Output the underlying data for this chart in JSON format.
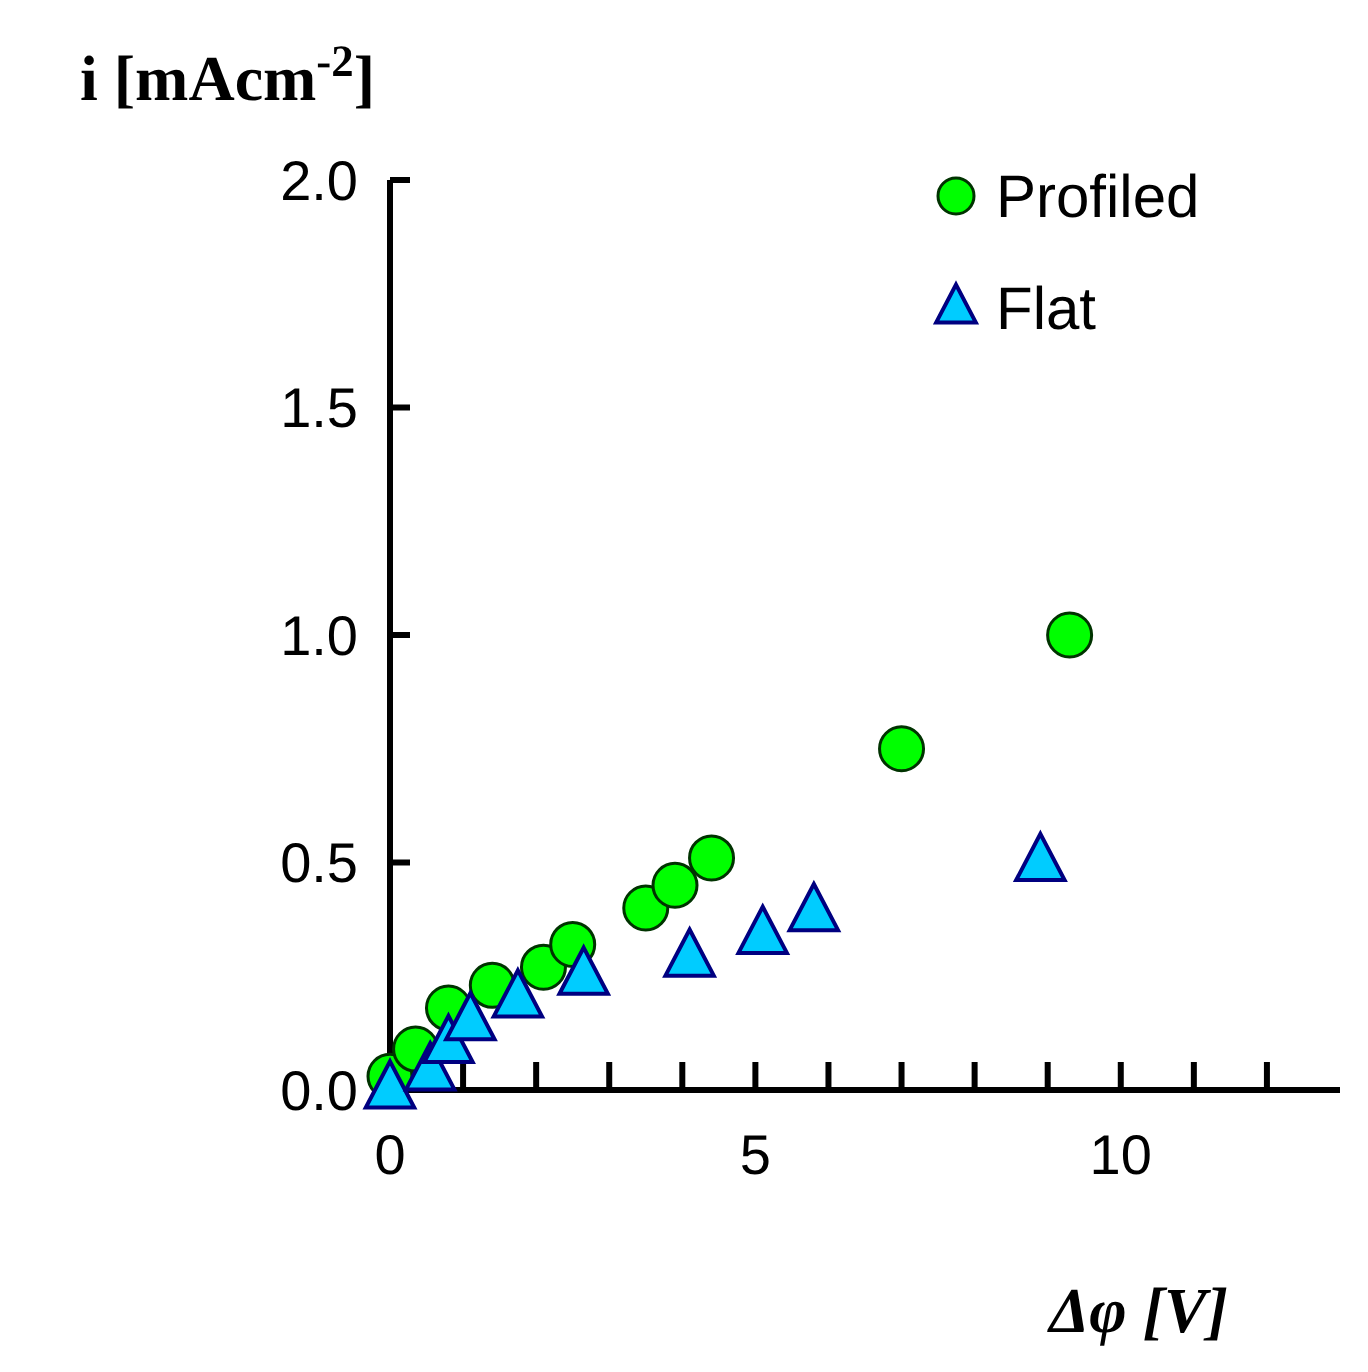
{
  "chart_data": {
    "type": "scatter",
    "xlabel": "Δφ [V]",
    "ylabel": "i [mAcm$^{-2}$]",
    "xlim": [
      0,
      13
    ],
    "ylim": [
      0,
      2
    ],
    "xticks": [
      0,
      {
        "value": 1,
        "label": null
      },
      {
        "value": 2,
        "label": null
      },
      {
        "value": 3,
        "label": null
      },
      {
        "value": 4,
        "label": null
      },
      5,
      {
        "value": 6,
        "label": null
      },
      {
        "value": 7,
        "label": null
      },
      {
        "value": 8,
        "label": null
      },
      {
        "value": 9,
        "label": null
      },
      10,
      {
        "value": 11,
        "label": null
      },
      {
        "value": 12,
        "label": null
      }
    ],
    "yticks": [
      {
        "value": 0,
        "label": "0.0"
      },
      {
        "value": 0.5,
        "label": "0.5"
      },
      {
        "value": 1,
        "label": "1.0"
      },
      {
        "value": 1.5,
        "label": "1.5"
      },
      {
        "value": 2,
        "label": "2.0"
      }
    ],
    "legend": "top right",
    "grid": false,
    "series": [
      {
        "name": "Profiled",
        "color": "#00ff00",
        "marker": "circle",
        "x": [
          0,
          0.35,
          0.8,
          1.4,
          2.1,
          2.5,
          3.5,
          3.9,
          4.4,
          7.0,
          9.3
        ],
        "values": [
          0.03,
          0.09,
          0.18,
          0.23,
          0.27,
          0.32,
          0.4,
          0.45,
          0.51,
          0.75,
          1.0
        ]
      },
      {
        "name": "Flat",
        "color": "#00ccff",
        "marker": "triangle",
        "x": [
          0,
          0.55,
          0.8,
          1.1,
          1.75,
          2.65,
          4.1,
          5.1,
          5.8,
          8.9
        ],
        "values": [
          0,
          0.04,
          0.1,
          0.15,
          0.2,
          0.25,
          0.29,
          0.34,
          0.39,
          0.5
        ]
      }
    ]
  }
}
